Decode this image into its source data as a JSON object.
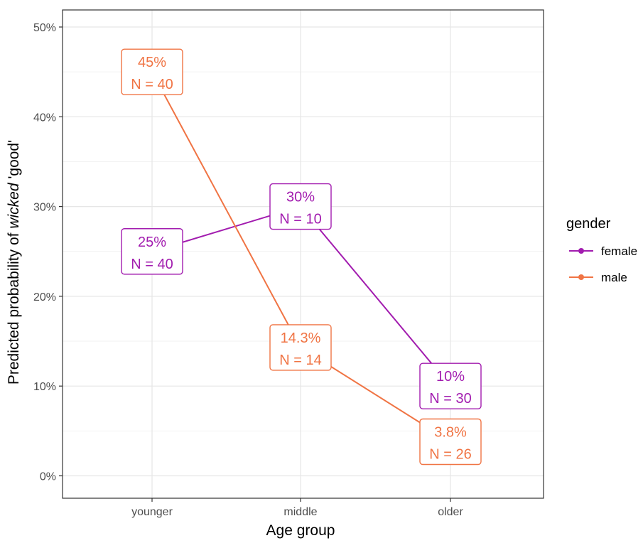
{
  "chart_data": {
    "type": "line",
    "xlabel": "Age group",
    "ylabel_prefix": "Predicted probability of ",
    "ylabel_italic": "wicked",
    "ylabel_suffix": " 'good'",
    "categories": [
      "younger",
      "middle",
      "older"
    ],
    "y_ticks": [
      "0%",
      "10%",
      "20%",
      "30%",
      "40%",
      "50%"
    ],
    "ylim": [
      0,
      0.52
    ],
    "grid": true,
    "legend": {
      "title": "gender",
      "placement": "right"
    },
    "series": [
      {
        "name": "female",
        "color": "#a21caf",
        "values": [
          0.25,
          0.3,
          0.1
        ],
        "labels": [
          {
            "pct": "25%",
            "n": "N = 40"
          },
          {
            "pct": "30%",
            "n": "N = 10"
          },
          {
            "pct": "10%",
            "n": "N = 30"
          }
        ]
      },
      {
        "name": "male",
        "color": "#f07444",
        "values": [
          0.45,
          0.143,
          0.038
        ],
        "labels": [
          {
            "pct": "45%",
            "n": "N = 40"
          },
          {
            "pct": "14.3%",
            "n": "N = 14"
          },
          {
            "pct": "3.8%",
            "n": "N = 26"
          }
        ]
      }
    ]
  }
}
